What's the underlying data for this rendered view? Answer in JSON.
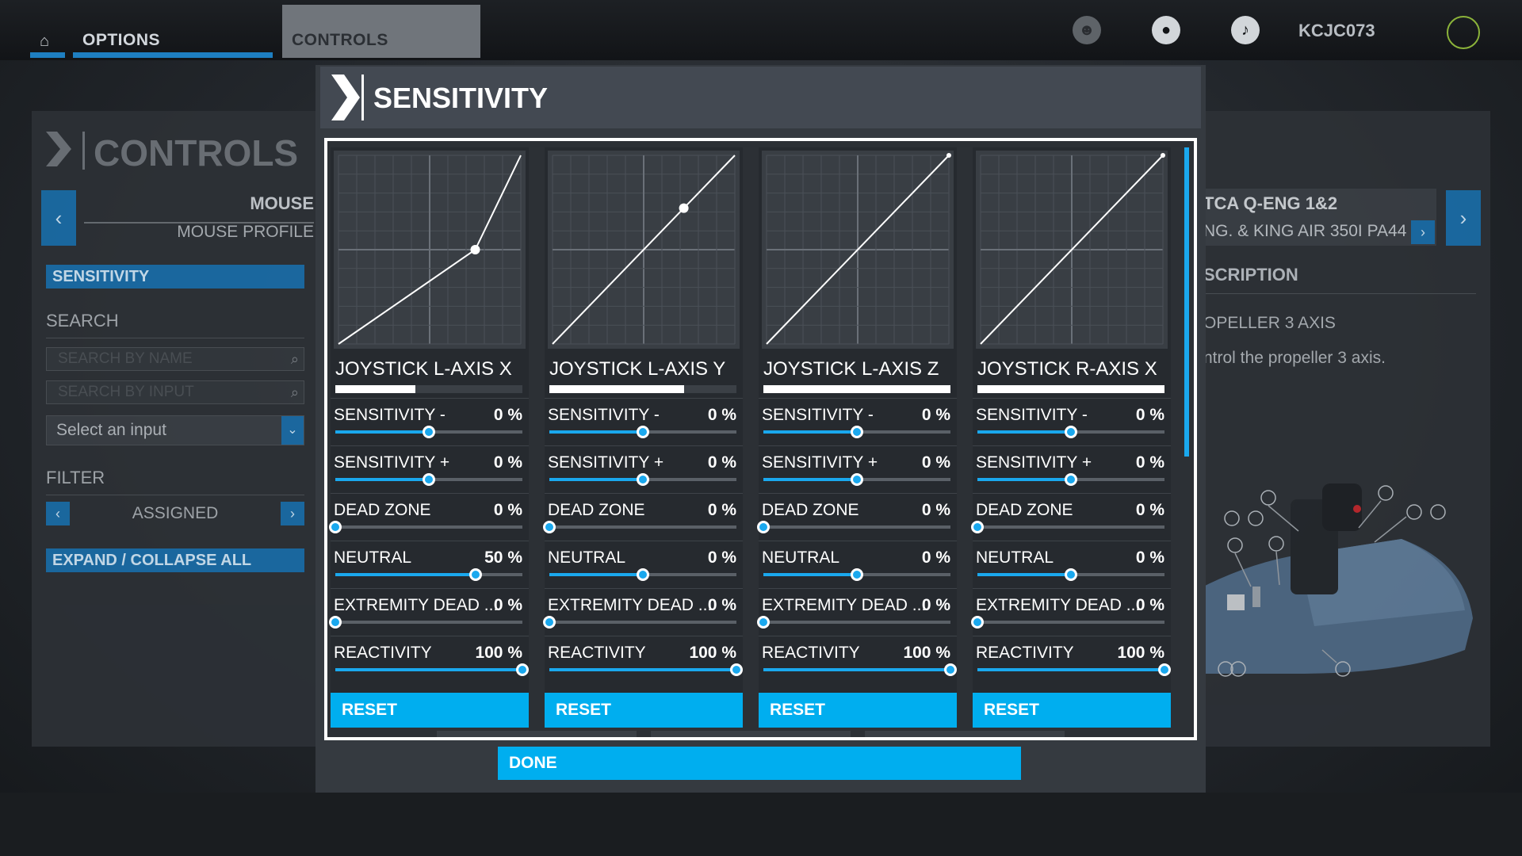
{
  "topbar": {
    "home_icon": "home-icon",
    "tabs": [
      {
        "label": "OPTIONS"
      },
      {
        "label": "CONTROLS"
      }
    ],
    "icons": [
      "friends-icon",
      "profile-icon",
      "notification-icon"
    ],
    "username": "KCJC073",
    "accent_color": "#1e7fc1"
  },
  "left_panel": {
    "title": "CONTROLS",
    "device": "MOUSE",
    "profile": "MOUSE PROFILE",
    "sensitivity_label": "SENSITIVITY",
    "search_heading": "SEARCH",
    "search_name_placeholder": "SEARCH BY NAME",
    "search_input_placeholder": "SEARCH BY INPUT",
    "select_input": "Select an input",
    "filter_heading": "FILTER",
    "filter_value": "ASSIGNED",
    "expand_label": "EXPAND / COLLAPSE ALL"
  },
  "right_panel": {
    "device_name": "TCA Q-ENG 1&2",
    "device_sub": "NG. & KING AIR 350I PA44",
    "description_heading": "SCRIPTION",
    "item_name": "OPELLER 3 AXIS",
    "item_desc": "ntrol the propeller 3 axis."
  },
  "modal": {
    "title": "SENSITIVITY",
    "reset_label": "RESET",
    "done_label": "DONE",
    "accent_color": "#00aeef",
    "axes": [
      {
        "name": "JOYSTICK L-AXIS X",
        "input_level": 0.43,
        "curve": [
          [
            0,
            0
          ],
          [
            0.75,
            0.5
          ],
          [
            1,
            1
          ]
        ],
        "marker": [
          0.75,
          0.5
        ],
        "params": [
          {
            "label": "SENSITIVITY -",
            "value": "0 %",
            "pos": 0.5
          },
          {
            "label": "SENSITIVITY +",
            "value": "0 %",
            "pos": 0.5
          },
          {
            "label": "DEAD ZONE",
            "value": "0 %",
            "pos": 0
          },
          {
            "label": "NEUTRAL",
            "value": "50 %",
            "pos": 0.75
          },
          {
            "label": "EXTREMITY DEAD ...",
            "value": "0 %",
            "pos": 0
          },
          {
            "label": "REACTIVITY",
            "value": "100 %",
            "pos": 1
          }
        ]
      },
      {
        "name": "JOYSTICK L-AXIS Y",
        "input_level": 0.72,
        "curve": [
          [
            0,
            0
          ],
          [
            1,
            1
          ]
        ],
        "marker": [
          0.72,
          0.72
        ],
        "params": [
          {
            "label": "SENSITIVITY -",
            "value": "0 %",
            "pos": 0.5
          },
          {
            "label": "SENSITIVITY +",
            "value": "0 %",
            "pos": 0.5
          },
          {
            "label": "DEAD ZONE",
            "value": "0 %",
            "pos": 0
          },
          {
            "label": "NEUTRAL",
            "value": "0 %",
            "pos": 0.5
          },
          {
            "label": "EXTREMITY DEAD ...",
            "value": "0 %",
            "pos": 0
          },
          {
            "label": "REACTIVITY",
            "value": "100 %",
            "pos": 1
          }
        ]
      },
      {
        "name": "JOYSTICK L-AXIS Z",
        "input_level": 1,
        "curve": [
          [
            0,
            0
          ],
          [
            1,
            1
          ]
        ],
        "marker": [
          1,
          1
        ],
        "params": [
          {
            "label": "SENSITIVITY -",
            "value": "0 %",
            "pos": 0.5
          },
          {
            "label": "SENSITIVITY +",
            "value": "0 %",
            "pos": 0.5
          },
          {
            "label": "DEAD ZONE",
            "value": "0 %",
            "pos": 0
          },
          {
            "label": "NEUTRAL",
            "value": "0 %",
            "pos": 0.5
          },
          {
            "label": "EXTREMITY DEAD ...",
            "value": "0 %",
            "pos": 0
          },
          {
            "label": "REACTIVITY",
            "value": "100 %",
            "pos": 1
          }
        ]
      },
      {
        "name": "JOYSTICK R-AXIS X",
        "input_level": 1,
        "curve": [
          [
            0,
            0
          ],
          [
            1,
            1
          ]
        ],
        "marker": [
          1,
          1
        ],
        "params": [
          {
            "label": "SENSITIVITY -",
            "value": "0 %",
            "pos": 0.5
          },
          {
            "label": "SENSITIVITY +",
            "value": "0 %",
            "pos": 0.5
          },
          {
            "label": "DEAD ZONE",
            "value": "0 %",
            "pos": 0
          },
          {
            "label": "NEUTRAL",
            "value": "0 %",
            "pos": 0.5
          },
          {
            "label": "EXTREMITY DEAD ...",
            "value": "0 %",
            "pos": 0
          },
          {
            "label": "REACTIVITY",
            "value": "100 %",
            "pos": 1
          }
        ]
      }
    ]
  }
}
